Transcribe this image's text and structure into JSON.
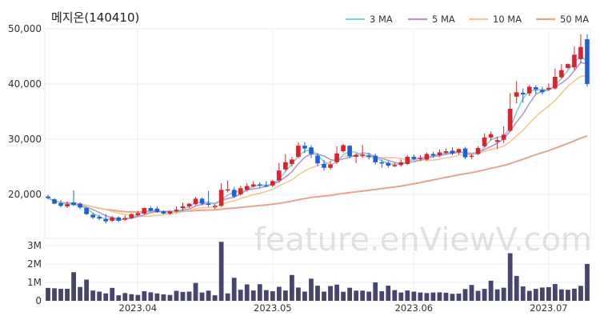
{
  "chart_data": {
    "type": "candlestick",
    "title": "메지온(140410)",
    "watermark": "feature.enViewV.com",
    "price_axis": {
      "min": 12000,
      "max": 50000,
      "ticks": [
        {
          "value": 20000,
          "label": "20,000"
        },
        {
          "value": 30000,
          "label": "30,000"
        },
        {
          "value": 40000,
          "label": "40,000"
        },
        {
          "value": 50000,
          "label": "50,000"
        }
      ]
    },
    "volume_axis": {
      "min": 0,
      "max": 3300000,
      "ticks": [
        {
          "value": 0,
          "label": "0"
        },
        {
          "value": 1000000,
          "label": "1M"
        },
        {
          "value": 2000000,
          "label": "2M"
        },
        {
          "value": 3000000,
          "label": "3M"
        }
      ]
    },
    "x_labels": [
      {
        "index": 14,
        "label": "2023.04"
      },
      {
        "index": 35,
        "label": "2023.05"
      },
      {
        "index": 57,
        "label": "2023.06"
      },
      {
        "index": 78,
        "label": "2023.07"
      }
    ],
    "legend": [
      {
        "name": "3 MA",
        "color": "#7fd3d3"
      },
      {
        "name": "5 MA",
        "color": "#b49ac9"
      },
      {
        "name": "10 MA",
        "color": "#f2c98f"
      },
      {
        "name": "50 MA",
        "color": "#f1a08a"
      }
    ],
    "up_color": "#e0202a",
    "down_color": "#1e5fd6",
    "volume_color": "#46456b",
    "candles": [
      [
        19600,
        19900,
        19300,
        19100
      ],
      [
        19100,
        19300,
        18300,
        18200
      ],
      [
        18400,
        19000,
        17900,
        17600
      ],
      [
        17800,
        18700,
        18200,
        17500
      ],
      [
        18500,
        20700,
        18100,
        17900
      ],
      [
        18300,
        18500,
        17600,
        17300
      ],
      [
        17500,
        17700,
        16400,
        16200
      ],
      [
        16300,
        16600,
        15800,
        15500
      ],
      [
        15900,
        16300,
        15600,
        15300
      ],
      [
        15500,
        16400,
        15100,
        14700
      ],
      [
        15200,
        16100,
        15800,
        15000
      ],
      [
        15800,
        16000,
        15200,
        15000
      ],
      [
        15400,
        16200,
        15700,
        15200
      ],
      [
        15700,
        16500,
        16400,
        15500
      ],
      [
        16200,
        17000,
        16600,
        16000
      ],
      [
        16500,
        17600,
        17500,
        16300
      ],
      [
        17500,
        17800,
        17000,
        16900
      ],
      [
        17400,
        17800,
        16800,
        16600
      ],
      [
        16900,
        17100,
        16500,
        16400
      ],
      [
        16500,
        17000,
        16900,
        16300
      ],
      [
        16900,
        17800,
        17200,
        16700
      ],
      [
        17500,
        18500,
        17800,
        17000
      ],
      [
        17800,
        18400,
        18300,
        17500
      ],
      [
        18200,
        19500,
        19200,
        18000
      ],
      [
        19200,
        19400,
        18300,
        18000
      ],
      [
        18300,
        20600,
        18200,
        17700
      ],
      [
        17800,
        18100,
        17900,
        17300
      ],
      [
        17900,
        22000,
        20800,
        17700
      ],
      [
        20800,
        22500,
        20900,
        20300
      ],
      [
        20800,
        21300,
        19600,
        19300
      ],
      [
        20000,
        21500,
        21100,
        19800
      ],
      [
        20800,
        22000,
        21500,
        20500
      ],
      [
        21400,
        22400,
        21800,
        21200
      ],
      [
        21800,
        22200,
        21600,
        21200
      ],
      [
        21600,
        22400,
        21500,
        21300
      ],
      [
        21600,
        22600,
        22400,
        21300
      ],
      [
        22500,
        25700,
        24300,
        22100
      ],
      [
        24500,
        27300,
        25800,
        24100
      ],
      [
        25500,
        26800,
        26300,
        25000
      ],
      [
        26800,
        29400,
        28800,
        26500
      ],
      [
        28800,
        29400,
        28300,
        27500
      ],
      [
        28500,
        28900,
        27300,
        26600
      ],
      [
        27000,
        27500,
        25600,
        25100
      ],
      [
        25500,
        26200,
        24800,
        24300
      ],
      [
        24800,
        26000,
        25400,
        24500
      ],
      [
        25800,
        28700,
        27400,
        25500
      ],
      [
        27800,
        29100,
        28900,
        27500
      ],
      [
        28800,
        28900,
        26900,
        26600
      ],
      [
        26800,
        27500,
        27100,
        25600
      ],
      [
        27200,
        28900,
        27200,
        26600
      ],
      [
        27000,
        27500,
        26800,
        26300
      ],
      [
        27000,
        27400,
        25800,
        25400
      ],
      [
        25800,
        26300,
        25700,
        24800
      ],
      [
        25700,
        26000,
        25200,
        24800
      ],
      [
        25200,
        25700,
        25300,
        24900
      ],
      [
        25300,
        26300,
        25800,
        25000
      ],
      [
        25500,
        27100,
        26800,
        25300
      ],
      [
        26800,
        27200,
        26400,
        26200
      ],
      [
        26400,
        27100,
        26600,
        26000
      ],
      [
        26300,
        27600,
        27300,
        26100
      ],
      [
        27300,
        27700,
        27000,
        26600
      ],
      [
        27100,
        28100,
        27600,
        26800
      ],
      [
        27500,
        28300,
        27800,
        27200
      ],
      [
        27900,
        28500,
        27400,
        27100
      ],
      [
        27600,
        28300,
        28200,
        27200
      ],
      [
        28300,
        28600,
        26700,
        26400
      ],
      [
        26800,
        27300,
        27000,
        26400
      ],
      [
        27300,
        28700,
        28400,
        27100
      ],
      [
        28700,
        31000,
        30300,
        28500
      ],
      [
        30300,
        31400,
        30900,
        29800
      ],
      [
        29500,
        30400,
        29800,
        28200
      ],
      [
        29900,
        32300,
        30800,
        29300
      ],
      [
        31500,
        38300,
        35500,
        31300
      ],
      [
        37700,
        40500,
        38500,
        36500
      ],
      [
        38400,
        39200,
        38100,
        36600
      ],
      [
        38300,
        39800,
        39500,
        37800
      ],
      [
        39400,
        39800,
        39000,
        38200
      ],
      [
        38900,
        39500,
        38500,
        38100
      ],
      [
        39000,
        40100,
        39300,
        38700
      ],
      [
        39200,
        42800,
        41300,
        39000
      ],
      [
        41200,
        43600,
        42500,
        41000
      ],
      [
        42900,
        43700,
        43600,
        42700
      ],
      [
        43000,
        46800,
        45300,
        42500
      ],
      [
        44500,
        49000,
        46700,
        43800
      ],
      [
        48100,
        49000,
        40000,
        39500
      ]
    ],
    "volumes": [
      700000,
      680000,
      650000,
      650000,
      1550000,
      750000,
      1150000,
      560000,
      500000,
      400000,
      700000,
      300000,
      420000,
      360000,
      320000,
      520000,
      460000,
      400000,
      350000,
      320000,
      540000,
      480000,
      500000,
      970000,
      450000,
      550000,
      300000,
      3200000,
      400000,
      1250000,
      600000,
      890000,
      560000,
      900000,
      580000,
      520000,
      760000,
      560000,
      1400000,
      720000,
      500000,
      1200000,
      820000,
      500000,
      800000,
      880000,
      490000,
      710000,
      550000,
      550000,
      500000,
      1000000,
      520000,
      820000,
      580000,
      450000,
      560000,
      500000,
      450000,
      420000,
      450000,
      460000,
      440000,
      380000,
      390000,
      640000,
      860000,
      540000,
      650000,
      1090000,
      620000,
      710000,
      2580000,
      1350000,
      780000,
      540000,
      650000,
      720000,
      740000,
      910000,
      620000,
      600000,
      660000,
      810000,
      2000000
    ]
  }
}
